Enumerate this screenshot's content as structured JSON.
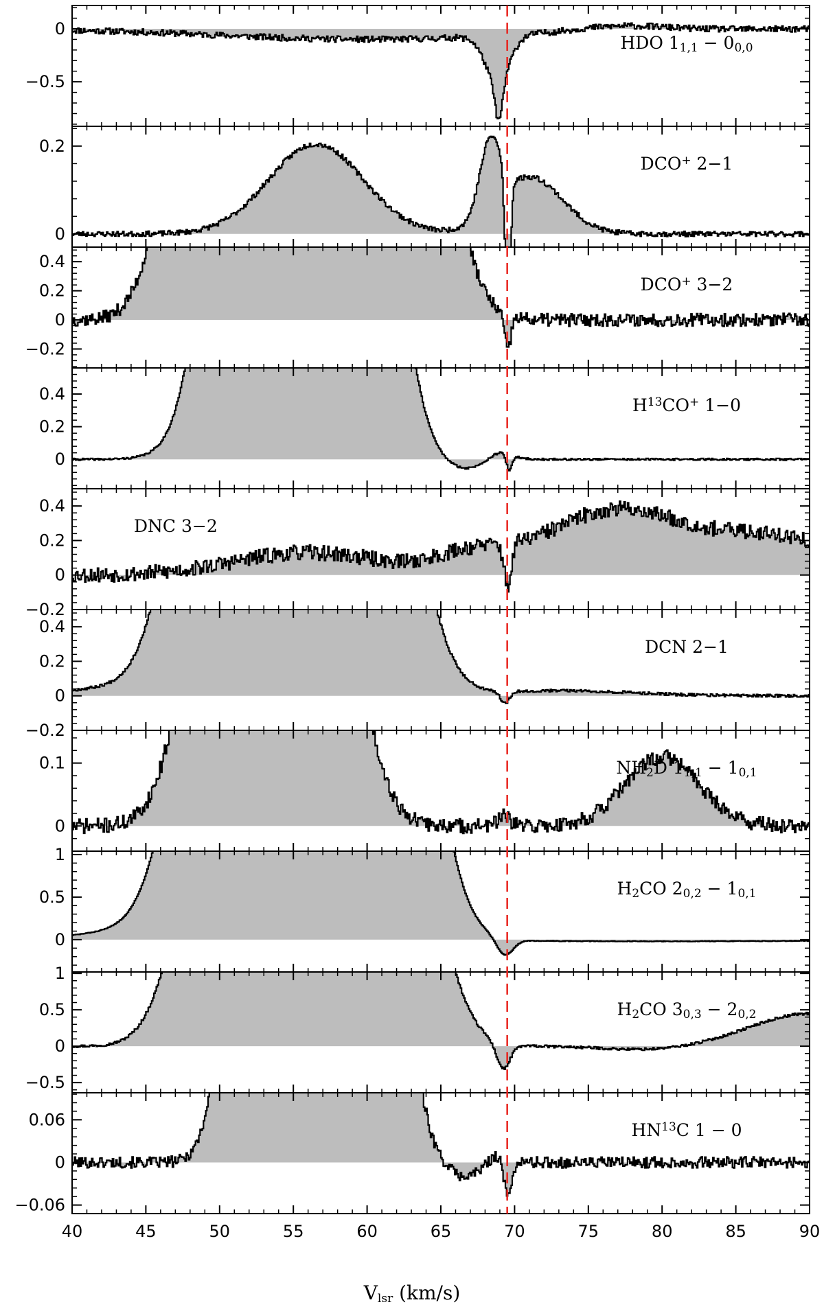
{
  "chart_data": {
    "type": "line",
    "style": "stepped-spectrum-stack",
    "xlabel_main": "V",
    "xlabel_sub": "lsr",
    "xlabel_unit": " (km/s)",
    "xlim": [
      40,
      90
    ],
    "xticks": [
      40,
      45,
      50,
      55,
      60,
      65,
      70,
      75,
      80,
      85,
      90
    ],
    "reference_line": {
      "x": 69.5,
      "color": "#e8241e",
      "style": "dashed"
    },
    "fill_color": "#bdbdbd",
    "panels": [
      {
        "label": [
          "HDO 1",
          "_1,1",
          " − 0",
          "_0,0"
        ],
        "label_pos": "right",
        "ylim": [
          -0.92,
          0.22
        ],
        "yticks": [
          0,
          -0.5
        ],
        "ytick_labels": [
          "0",
          "−0.5"
        ],
        "noise": 0.03,
        "seed": 11,
        "components": [
          {
            "shape": "g",
            "v": 60,
            "a": -0.1,
            "w": 10
          },
          {
            "shape": "g",
            "v": 68.8,
            "a": -0.45,
            "w": 0.8
          },
          {
            "shape": "g",
            "v": 68.9,
            "a": -0.35,
            "w": 0.25
          },
          {
            "shape": "g",
            "v": 77,
            "a": 0.05,
            "w": 3
          }
        ]
      },
      {
        "label": [
          "DCO",
          "^+",
          " 2−1"
        ],
        "label_pos": "right",
        "ylim": [
          -0.03,
          0.245
        ],
        "yticks": [
          0,
          0.2
        ],
        "ytick_labels": [
          "0",
          "0.2"
        ],
        "noise": 0.006,
        "seed": 23,
        "components": [
          {
            "shape": "g",
            "v": 56.5,
            "a": 0.205,
            "w": 3.2
          },
          {
            "shape": "g",
            "v": 68.3,
            "a": 0.16,
            "w": 0.7
          },
          {
            "shape": "g",
            "v": 71,
            "a": 0.13,
            "w": 2.2
          },
          {
            "shape": "g",
            "v": 69.5,
            "a": -0.32,
            "w": 0.18
          }
        ]
      },
      {
        "label": [
          "DCO",
          "^+",
          " 3−2"
        ],
        "label_pos": "right",
        "ylim": [
          -0.33,
          0.5
        ],
        "yticks": [
          -0.2,
          0,
          0.2,
          0.4
        ],
        "ytick_labels": [
          "−0.2",
          "0",
          "0.2",
          "0.4"
        ],
        "noise": 0.045,
        "seed": 37,
        "components": [
          {
            "shape": "tg",
            "v1": 49,
            "v2": 63,
            "a": 2.5,
            "w": 2.2
          },
          {
            "shape": "g",
            "v": 69.5,
            "a": -0.25,
            "w": 0.2
          }
        ]
      },
      {
        "label": [
          "H",
          "^13",
          "CO",
          "^+",
          " 1−0"
        ],
        "label_pos": "right",
        "ylim": [
          -0.18,
          0.56
        ],
        "yticks": [
          0,
          0.2,
          0.4
        ],
        "ytick_labels": [
          "0",
          "0.2",
          "0.4"
        ],
        "noise": 0.006,
        "seed": 41,
        "components": [
          {
            "shape": "tg",
            "v1": 51,
            "v2": 60,
            "a": 2.5,
            "w": 1.9
          },
          {
            "shape": "g",
            "v": 48,
            "a": 0.05,
            "w": 2
          },
          {
            "shape": "g",
            "v": 66.5,
            "a": -0.06,
            "w": 1.3
          },
          {
            "shape": "g",
            "v": 69,
            "a": 0.05,
            "w": 0.8
          },
          {
            "shape": "g",
            "v": 69.6,
            "a": -0.1,
            "w": 0.2
          }
        ]
      },
      {
        "label": [
          "DNC 3−2"
        ],
        "label_pos": "left",
        "ylim": [
          -0.2,
          0.5
        ],
        "yticks": [
          -0.2,
          0,
          0.2,
          0.4
        ],
        "ytick_labels": [
          "−0.2",
          "0",
          "0.2",
          "0.4"
        ],
        "noise": 0.045,
        "seed": 53,
        "components": [
          {
            "shape": "g",
            "v": 56,
            "a": 0.13,
            "w": 5
          },
          {
            "shape": "g",
            "v": 77,
            "a": 0.38,
            "w": 5
          },
          {
            "shape": "g",
            "v": 88,
            "a": 0.2,
            "w": 4
          },
          {
            "shape": "g",
            "v": 67,
            "a": 0.1,
            "w": 2.5
          },
          {
            "shape": "g",
            "v": 69.5,
            "a": -0.25,
            "w": 0.25
          }
        ]
      },
      {
        "label": [
          "DCN 2−1"
        ],
        "label_pos": "right",
        "ylim": [
          -0.2,
          0.5
        ],
        "yticks": [
          -0.2,
          0,
          0.2,
          0.4
        ],
        "ytick_labels": [
          "−0.2",
          "0",
          "0.2",
          "0.4"
        ],
        "noise": 0.008,
        "seed": 67,
        "components": [
          {
            "shape": "tg",
            "v1": 50,
            "v2": 60,
            "a": 2.5,
            "w": 2.6
          },
          {
            "shape": "g",
            "v": 42,
            "a": 0.04,
            "w": 3
          },
          {
            "shape": "g",
            "v": 73,
            "a": 0.03,
            "w": 5
          },
          {
            "shape": "g",
            "v": 69.3,
            "a": -0.07,
            "w": 0.3
          }
        ]
      },
      {
        "label": [
          "NH",
          "_2",
          "D 1",
          "_1,1",
          " − 1",
          "_0,1"
        ],
        "label_pos": "right",
        "ylim": [
          -0.04,
          0.152
        ],
        "yticks": [
          0,
          0.1
        ],
        "ytick_labels": [
          "0",
          "0.1"
        ],
        "noise": 0.012,
        "seed": 71,
        "components": [
          {
            "shape": "tg",
            "v1": 50,
            "v2": 57,
            "a": 0.5,
            "w": 2.2
          },
          {
            "shape": "g",
            "v": 80,
            "a": 0.11,
            "w": 2.5
          },
          {
            "shape": "g",
            "v": 69.2,
            "a": 0.015,
            "w": 0.4
          }
        ]
      },
      {
        "label": [
          "H",
          "_2",
          "CO 2",
          "_0,2",
          " − 1",
          "_0,1"
        ],
        "label_pos": "right",
        "ylim": [
          -0.38,
          1.04
        ],
        "yticks": [
          0,
          0.5,
          1
        ],
        "ytick_labels": [
          "0",
          "0.5",
          "1"
        ],
        "noise": 0.004,
        "seed": 83,
        "components": [
          {
            "shape": "tg",
            "v1": 49.5,
            "v2": 62,
            "a": 4,
            "w": 2.4
          },
          {
            "shape": "g",
            "v": 44,
            "a": 0.1,
            "w": 3.5
          },
          {
            "shape": "g",
            "v": 66.5,
            "a": -0.06,
            "w": 1.2
          },
          {
            "shape": "g",
            "v": 69.3,
            "a": -0.2,
            "w": 0.55
          },
          {
            "shape": "g",
            "v": 80,
            "a": -0.02,
            "w": 12
          }
        ]
      },
      {
        "label": [
          "H",
          "_2",
          "CO 3",
          "_0,3",
          " − 2",
          "_0,2"
        ],
        "label_pos": "right",
        "ylim": [
          -0.64,
          1.02
        ],
        "yticks": [
          -0.5,
          0,
          0.5,
          1
        ],
        "ytick_labels": [
          "−0.5",
          "0",
          "0.5",
          "1"
        ],
        "noise": 0.018,
        "seed": 97,
        "components": [
          {
            "shape": "tg",
            "v1": 50,
            "v2": 62,
            "a": 4,
            "w": 2.4
          },
          {
            "shape": "g",
            "v": 69.2,
            "a": -0.35,
            "w": 0.45
          },
          {
            "shape": "g",
            "v": 90,
            "a": 0.45,
            "w": 4
          },
          {
            "shape": "g",
            "v": 79,
            "a": -0.05,
            "w": 3
          }
        ]
      },
      {
        "label": [
          "HN",
          "^13",
          "C 1 − 0"
        ],
        "label_pos": "right",
        "ylim": [
          -0.072,
          0.098
        ],
        "yticks": [
          -0.06,
          0,
          0.06
        ],
        "ytick_labels": [
          "−0.06",
          "0",
          "0.06"
        ],
        "noise": 0.008,
        "seed": 101,
        "components": [
          {
            "shape": "tg",
            "v1": 52,
            "v2": 61,
            "a": 0.5,
            "w": 1.5
          },
          {
            "shape": "g",
            "v": 66.5,
            "a": -0.02,
            "w": 1
          },
          {
            "shape": "g",
            "v": 69.5,
            "a": -0.05,
            "w": 0.25
          },
          {
            "shape": "g",
            "v": 68.7,
            "a": 0.012,
            "w": 0.4
          }
        ]
      }
    ]
  }
}
